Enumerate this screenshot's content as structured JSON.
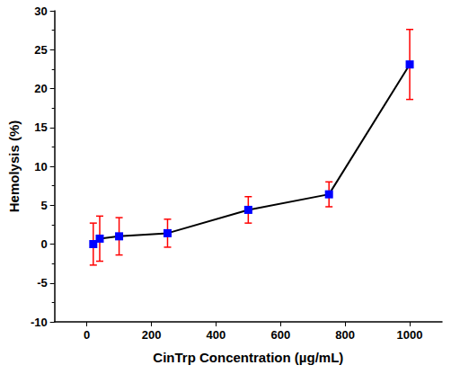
{
  "chart_data": {
    "type": "line",
    "x_label": "CinTrp Concentration (µg/mL)",
    "y_label": "Hemolysis (%)",
    "x": [
      20,
      40,
      100,
      250,
      500,
      750,
      1000
    ],
    "series": [
      {
        "color": "#0000ff",
        "marker": "square",
        "line_style": "solid",
        "values": [
          0.0,
          0.7,
          1.0,
          1.4,
          4.4,
          6.4,
          23.1
        ],
        "error": [
          2.7,
          2.9,
          2.4,
          1.8,
          1.7,
          1.6,
          4.5
        ]
      }
    ],
    "xlim": [
      -100,
      1100
    ],
    "xticks": [
      0,
      200,
      400,
      600,
      800,
      1000
    ],
    "ylim": [
      -10,
      30
    ],
    "yticks": [
      -10,
      -5,
      0,
      5,
      10,
      15,
      20,
      25,
      30
    ],
    "grid": false
  }
}
